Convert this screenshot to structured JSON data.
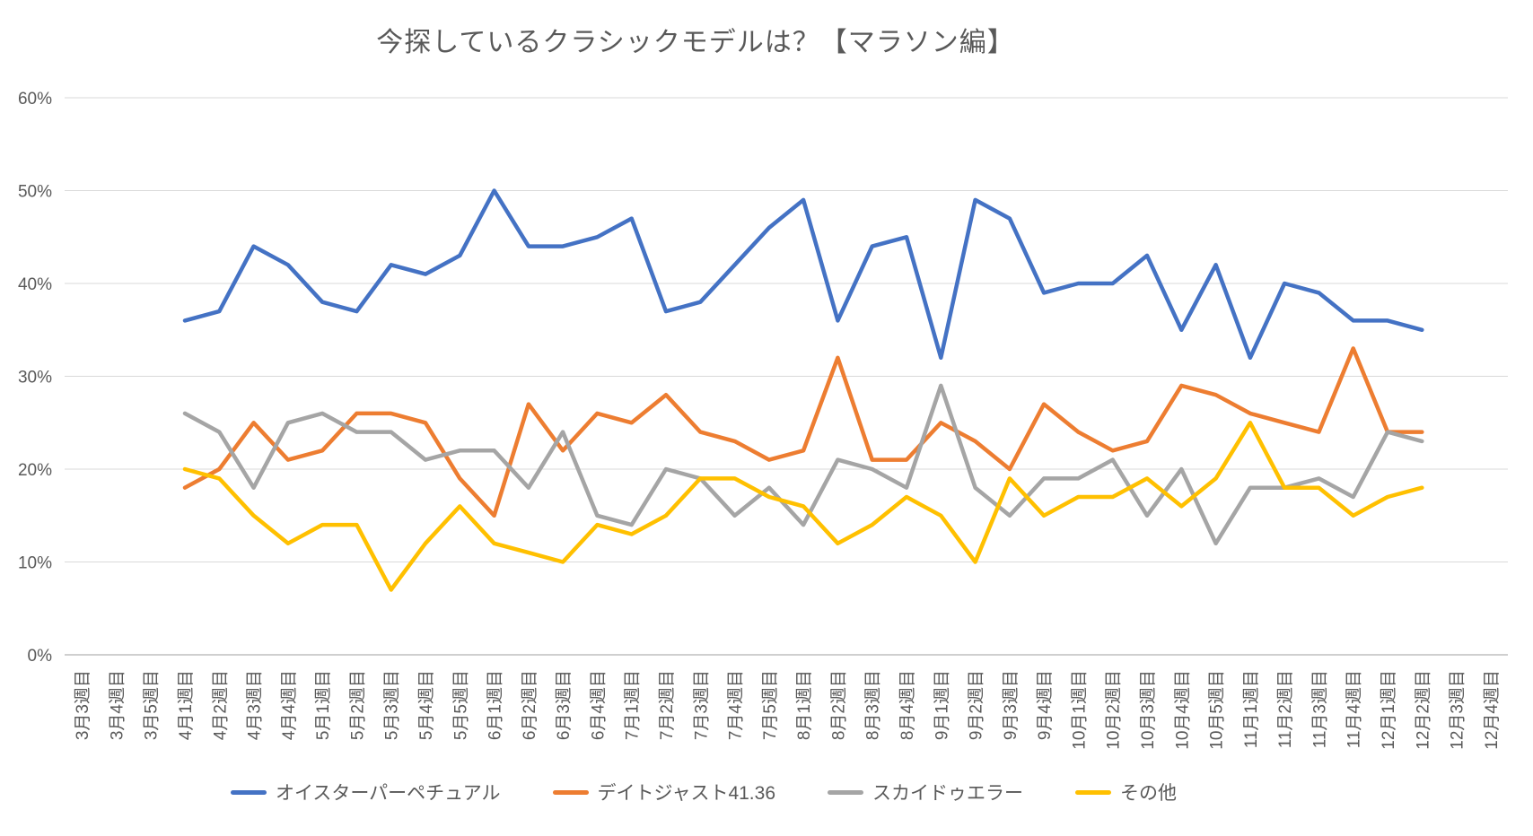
{
  "title": "今探しているクラシックモデルは？【マラソン編】",
  "chart_data": {
    "type": "line",
    "categories": [
      "3月3週目",
      "3月4週目",
      "3月5週目",
      "4月1週目",
      "4月2週目",
      "4月3週目",
      "4月4週目",
      "5月1週目",
      "5月2週目",
      "5月3週目",
      "5月4週目",
      "5月5週目",
      "6月1週目",
      "6月2週目",
      "6月3週目",
      "6月4週目",
      "7月1週目",
      "7月2週目",
      "7月3週目",
      "7月4週目",
      "7月5週目",
      "8月1週目",
      "8月2週目",
      "8月3週目",
      "8月4週目",
      "9月1週目",
      "9月2週目",
      "9月3週目",
      "9月4週目",
      "10月1週目",
      "10月2週目",
      "10月3週目",
      "10月4週目",
      "10月5週目",
      "11月1週目",
      "11月2週目",
      "11月3週目",
      "11月4週目",
      "12月1週目",
      "12月2週目",
      "12月3週目",
      "12月4週目"
    ],
    "data_start_index": 3,
    "series": [
      {
        "name": "オイスターパーペチュアル",
        "color": "#4472C4",
        "values": [
          36,
          37,
          44,
          42,
          38,
          37,
          42,
          41,
          43,
          50,
          44,
          44,
          45,
          47,
          37,
          38,
          42,
          46,
          49,
          36,
          44,
          45,
          32,
          49,
          47,
          39,
          40,
          40,
          43,
          35,
          42,
          32,
          40,
          39,
          36,
          36,
          35
        ]
      },
      {
        "name": "デイトジャスト41.36",
        "color": "#ED7D31",
        "values": [
          18,
          20,
          25,
          21,
          22,
          26,
          26,
          25,
          19,
          15,
          27,
          22,
          26,
          25,
          28,
          24,
          23,
          21,
          22,
          32,
          21,
          21,
          25,
          23,
          20,
          27,
          24,
          22,
          23,
          29,
          28,
          26,
          25,
          24,
          33,
          24,
          24
        ]
      },
      {
        "name": "スカイドゥエラー",
        "color": "#A5A5A5",
        "values": [
          26,
          24,
          18,
          25,
          26,
          24,
          24,
          21,
          22,
          22,
          18,
          24,
          15,
          14,
          20,
          19,
          15,
          18,
          14,
          21,
          20,
          18,
          29,
          18,
          15,
          19,
          19,
          21,
          15,
          20,
          12,
          18,
          18,
          19,
          17,
          24,
          23
        ]
      },
      {
        "name": "その他",
        "color": "#FFC000",
        "values": [
          20,
          19,
          15,
          12,
          14,
          14,
          7,
          12,
          16,
          12,
          11,
          10,
          14,
          13,
          15,
          19,
          19,
          17,
          16,
          12,
          14,
          17,
          15,
          10,
          19,
          15,
          17,
          17,
          19,
          16,
          19,
          25,
          18,
          18,
          15,
          17,
          18
        ]
      }
    ],
    "ylim": [
      0,
      60
    ],
    "ytick_step": 10,
    "ytick_labels": [
      "0%",
      "10%",
      "20%",
      "30%",
      "40%",
      "50%",
      "60%"
    ],
    "grid": true,
    "legend_position": "bottom"
  },
  "colors": {
    "title_text": "#595959",
    "axis_text": "#595959",
    "gridline": "#d9d9d9",
    "axis_line": "#bfbfbf",
    "background": "#ffffff"
  }
}
